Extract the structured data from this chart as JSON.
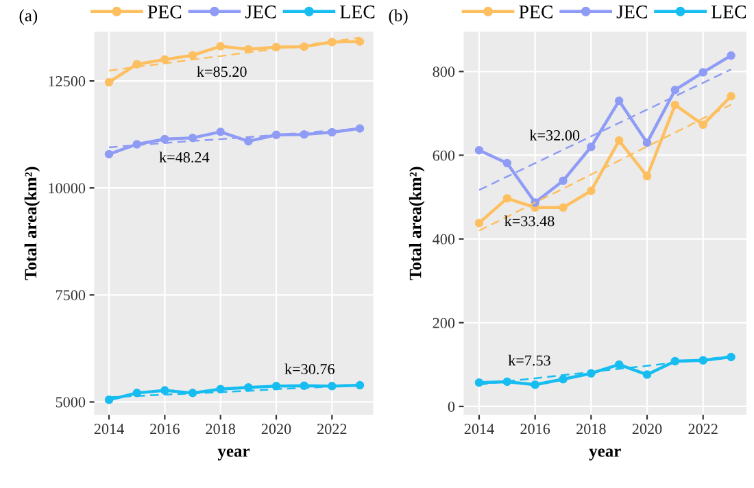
{
  "chart_data": [
    {
      "type": "line",
      "title": "(a)",
      "xlabel": "year",
      "ylabel": "Total area(km²)",
      "x": [
        2014,
        2015,
        2016,
        2017,
        2018,
        2019,
        2020,
        2021,
        2022,
        2023
      ],
      "xlim": [
        2013.47,
        2023.48
      ],
      "xticks": [
        2014,
        2016,
        2018,
        2020,
        2022
      ],
      "ylim": [
        4700,
        13650
      ],
      "yticks": [
        5000,
        7500,
        10000,
        12500
      ],
      "grid": true,
      "legend": "top",
      "marker": "circle",
      "line_style": "solid",
      "series": [
        {
          "name": "PEC",
          "color": "#fdbf5f",
          "values": [
            12470,
            12890,
            13000,
            13100,
            13310,
            13240,
            13290,
            13300,
            13410,
            13420
          ]
        },
        {
          "name": "JEC",
          "color": "#8f9cf5",
          "values": [
            10790,
            11020,
            11140,
            11170,
            11310,
            11090,
            11240,
            11250,
            11300,
            11390
          ]
        },
        {
          "name": "LEC",
          "color": "#17bdf0",
          "values": [
            5050,
            5210,
            5270,
            5210,
            5300,
            5340,
            5370,
            5380,
            5370,
            5390
          ]
        },
        {
          "type": "line",
          "name": "k=85.20",
          "color": "#fdbf5f",
          "values": [
            12740,
            12830,
            12910,
            13000,
            13080,
            13170,
            13250,
            13340,
            13420,
            13510
          ],
          "line_style": "dashed",
          "marker": "none"
        },
        {
          "type": "line",
          "name": "k=48.24",
          "color": "#8f9cf5",
          "values": [
            10950,
            11000,
            11050,
            11100,
            11140,
            11190,
            11240,
            11290,
            11340,
            11380
          ],
          "line_style": "dashed",
          "marker": "none"
        },
        {
          "type": "line",
          "name": "k=30.76",
          "color": "#17bdf0",
          "values": [
            5110,
            5140,
            5170,
            5200,
            5230,
            5260,
            5300,
            5330,
            5360,
            5390
          ],
          "line_style": "dashed",
          "marker": "none"
        }
      ]
    },
    {
      "type": "line",
      "title": "(b)",
      "xlabel": "year",
      "ylabel": "Total area(km²)",
      "x": [
        2014,
        2015,
        2016,
        2017,
        2018,
        2019,
        2020,
        2021,
        2022,
        2023
      ],
      "xlim": [
        2013.45,
        2023.55
      ],
      "xticks": [
        2014,
        2016,
        2018,
        2020,
        2022
      ],
      "ylim": [
        -20,
        895
      ],
      "yticks": [
        0,
        200,
        400,
        600,
        800
      ],
      "grid": true,
      "legend": "top",
      "marker": "circle",
      "line_style": "solid",
      "series": [
        {
          "name": "PEC",
          "color": "#fdbf5f",
          "values": [
            438,
            497,
            475,
            475,
            515,
            635,
            550,
            720,
            673,
            741
          ]
        },
        {
          "name": "JEC",
          "color": "#8f9cf5",
          "values": [
            612,
            581,
            487,
            539,
            620,
            730,
            630,
            756,
            798,
            838
          ]
        },
        {
          "name": "LEC",
          "color": "#17bdf0",
          "values": [
            57,
            59,
            52,
            65,
            79,
            100,
            76,
            108,
            110,
            118
          ]
        },
        {
          "type": "line",
          "name": "k=32.00",
          "color": "#8f9cf5",
          "values": [
            517,
            549,
            581,
            613,
            645,
            677,
            709,
            741,
            773,
            805
          ],
          "line_style": "dashed",
          "marker": "none"
        },
        {
          "type": "line",
          "name": "k=33.48",
          "color": "#fdbf5f",
          "values": [
            420,
            453,
            487,
            520,
            554,
            587,
            621,
            654,
            688,
            721
          ],
          "line_style": "dashed",
          "marker": "none"
        },
        {
          "type": "line",
          "name": "k=7.53",
          "color": "#17bdf0",
          "values": [
            52,
            60,
            67,
            75,
            82,
            90,
            97,
            105,
            112,
            120
          ],
          "line_style": "dashed",
          "marker": "none"
        }
      ]
    }
  ]
}
